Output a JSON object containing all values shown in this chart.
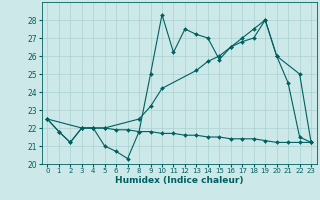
{
  "xlabel": "Humidex (Indice chaleur)",
  "background_color": "#cce8e8",
  "grid_color": "#aad0d0",
  "line_color": "#006060",
  "xlim": [
    -0.5,
    23.5
  ],
  "ylim": [
    20,
    29
  ],
  "yticks": [
    20,
    21,
    22,
    23,
    24,
    25,
    26,
    27,
    28
  ],
  "xticks": [
    0,
    1,
    2,
    3,
    4,
    5,
    6,
    7,
    8,
    9,
    10,
    11,
    12,
    13,
    14,
    15,
    16,
    17,
    18,
    19,
    20,
    21,
    22,
    23
  ],
  "line1_x": [
    0,
    1,
    2,
    3,
    4,
    5,
    6,
    7,
    8,
    9,
    10,
    11,
    12,
    13,
    14,
    15,
    16,
    17,
    18,
    19,
    20,
    21,
    22,
    23
  ],
  "line1_y": [
    22.5,
    21.8,
    21.2,
    22.0,
    22.0,
    21.0,
    20.7,
    20.3,
    21.8,
    25.0,
    28.3,
    26.2,
    27.5,
    27.2,
    27.0,
    25.8,
    26.5,
    26.8,
    27.0,
    28.0,
    26.0,
    24.5,
    21.5,
    21.2
  ],
  "line2_x": [
    0,
    3,
    4,
    5,
    8,
    9,
    10,
    13,
    14,
    15,
    16,
    17,
    18,
    19,
    20,
    22,
    23
  ],
  "line2_y": [
    22.5,
    22.0,
    22.0,
    22.0,
    22.5,
    23.2,
    24.2,
    25.2,
    25.7,
    26.0,
    26.5,
    27.0,
    27.5,
    28.0,
    26.0,
    25.0,
    21.2
  ],
  "line3_x": [
    0,
    1,
    2,
    3,
    4,
    5,
    6,
    7,
    8,
    9,
    10,
    11,
    12,
    13,
    14,
    15,
    16,
    17,
    18,
    19,
    20,
    21,
    22,
    23
  ],
  "line3_y": [
    22.5,
    21.8,
    21.2,
    22.0,
    22.0,
    22.0,
    21.9,
    21.9,
    21.8,
    21.8,
    21.7,
    21.7,
    21.6,
    21.6,
    21.5,
    21.5,
    21.4,
    21.4,
    21.4,
    21.3,
    21.2,
    21.2,
    21.2,
    21.2
  ]
}
